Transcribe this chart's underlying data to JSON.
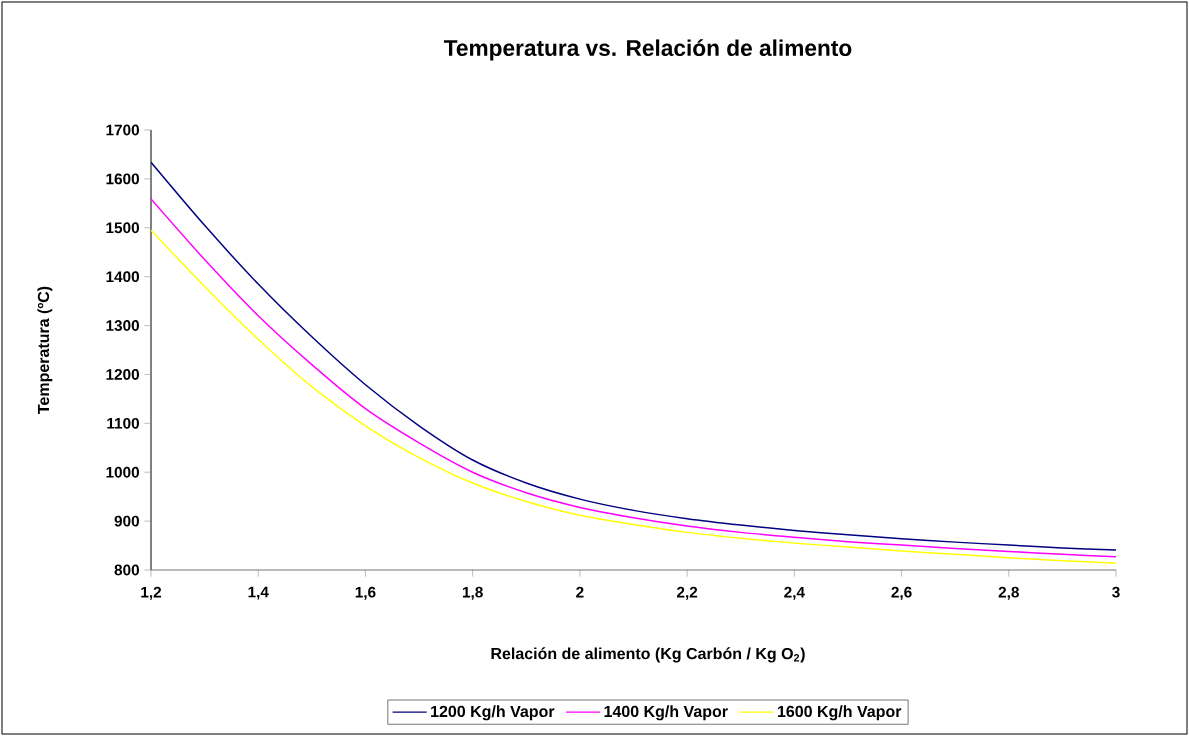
{
  "chart_data": {
    "type": "line",
    "title": "Temperatura vs. Relación de alimento",
    "xlabel": "Relación de alimento (Kg Carbón / Kg O$_{2}$)",
    "ylabel": "Temperatura (ºC)",
    "x": [
      1.2,
      1.3,
      1.4,
      1.5,
      1.6,
      1.7,
      1.8,
      1.9,
      2.0,
      2.1,
      2.2,
      2.3,
      2.4,
      2.5,
      2.6,
      2.7,
      2.8,
      2.9,
      3.0
    ],
    "series": [
      {
        "name": "1200 Kg/h Vapor",
        "color": "#000080",
        "values": [
          1634,
          1505,
          1385,
          1277,
          1179,
          1095,
          1025,
          978,
          945,
          922,
          905,
          892,
          881,
          872,
          864,
          857,
          851,
          845,
          841
        ]
      },
      {
        "name": "1400 Kg/h Vapor",
        "color": "#ff00ff",
        "values": [
          1559,
          1435,
          1320,
          1220,
          1130,
          1060,
          1000,
          958,
          928,
          907,
          890,
          877,
          867,
          858,
          851,
          844,
          838,
          832,
          827
        ]
      },
      {
        "name": "1600 Kg/h Vapor",
        "color": "#ffff00",
        "values": [
          1495,
          1380,
          1272,
          1175,
          1095,
          1030,
          978,
          940,
          912,
          893,
          877,
          865,
          855,
          847,
          839,
          832,
          825,
          819,
          814
        ]
      }
    ],
    "xlim": [
      1.2,
      3.0
    ],
    "xticks": [
      {
        "value": 1.2,
        "label": "1,2"
      },
      {
        "value": 1.4,
        "label": "1,4"
      },
      {
        "value": 1.6,
        "label": "1,6"
      },
      {
        "value": 1.8,
        "label": "1,8"
      },
      2,
      {
        "value": 2.2,
        "label": "2,2"
      },
      {
        "value": 2.4,
        "label": "2,4"
      },
      {
        "value": 2.6,
        "label": "2,6"
      },
      {
        "value": 2.8,
        "label": "2,8"
      },
      3
    ],
    "ylim": [
      800,
      1700
    ],
    "yticks": [
      800,
      900,
      1000,
      1100,
      1200,
      1300,
      1400,
      1500,
      1600,
      1700
    ],
    "legend": "bottom",
    "marker": "none",
    "line_style": "solid"
  }
}
